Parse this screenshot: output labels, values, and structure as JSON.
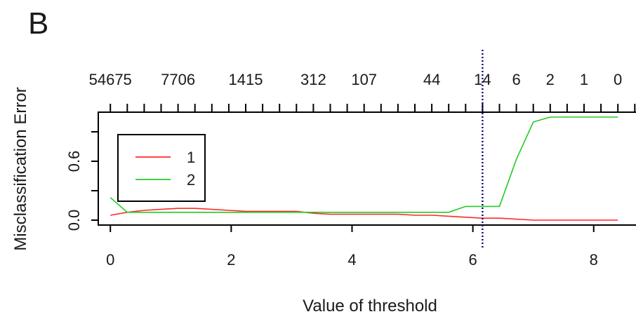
{
  "panel_label": "B",
  "chart_data": {
    "type": "line",
    "xlabel": "Value of threshold",
    "ylabel": "Misclassification Error",
    "xlim": [
      -0.2,
      8.7
    ],
    "ylim": [
      -0.05,
      1.1
    ],
    "x_ticks": [
      0,
      2,
      4,
      6,
      8
    ],
    "y_ticks": [
      0.0,
      0.3,
      0.6,
      0.9
    ],
    "y_tick_labels": [
      "0.0",
      "",
      "0.6",
      ""
    ],
    "top_axis": {
      "ticks": [
        0,
        0.28,
        0.56,
        0.84,
        1.12,
        1.4,
        1.68,
        1.96,
        2.24,
        2.52,
        2.8,
        3.08,
        3.36,
        3.64,
        3.92,
        4.2,
        4.48,
        4.76,
        5.04,
        5.32,
        5.6,
        5.88,
        6.16,
        6.44,
        6.72,
        7.0,
        7.28,
        7.56,
        7.84,
        8.12,
        8.4,
        8.68
      ],
      "labeled_positions": [
        0,
        1.12,
        2.24,
        3.36,
        4.2,
        5.32,
        6.16,
        6.72,
        7.28,
        7.84,
        8.4
      ],
      "labels": [
        "54675",
        "7706",
        "1415",
        "312",
        "107",
        "44",
        "14",
        "6",
        "2",
        "1",
        "0"
      ]
    },
    "vline": {
      "x": 6.16,
      "color": "#00007a"
    },
    "legend": {
      "placement": "top-left",
      "entries": [
        "1",
        "2"
      ]
    },
    "series": [
      {
        "name": "1",
        "color": "#ff2a2a",
        "x": [
          0,
          0.28,
          0.56,
          0.84,
          1.12,
          1.4,
          1.68,
          1.96,
          2.24,
          2.52,
          2.8,
          3.08,
          3.36,
          3.64,
          3.92,
          4.2,
          4.48,
          4.76,
          5.04,
          5.32,
          5.6,
          5.88,
          6.16,
          6.44,
          6.72,
          7.0,
          7.28,
          7.56,
          7.84,
          8.12,
          8.4
        ],
        "values": [
          0.05,
          0.08,
          0.1,
          0.11,
          0.12,
          0.12,
          0.11,
          0.1,
          0.09,
          0.09,
          0.09,
          0.09,
          0.07,
          0.06,
          0.06,
          0.06,
          0.06,
          0.06,
          0.05,
          0.05,
          0.04,
          0.03,
          0.02,
          0.02,
          0.01,
          0.0,
          0.0,
          0.0,
          0.0,
          0.0,
          0.0
        ]
      },
      {
        "name": "2",
        "color": "#22cc22",
        "x": [
          0,
          0.28,
          0.56,
          0.84,
          1.12,
          1.4,
          1.68,
          1.96,
          2.24,
          2.52,
          2.8,
          3.08,
          3.36,
          3.64,
          3.92,
          4.2,
          4.48,
          4.76,
          5.04,
          5.32,
          5.6,
          5.88,
          6.16,
          6.44,
          6.72,
          7.0,
          7.28,
          7.56,
          7.84,
          8.12,
          8.4
        ],
        "values": [
          0.23,
          0.08,
          0.08,
          0.08,
          0.08,
          0.08,
          0.08,
          0.08,
          0.08,
          0.08,
          0.08,
          0.08,
          0.08,
          0.08,
          0.08,
          0.08,
          0.08,
          0.08,
          0.08,
          0.08,
          0.08,
          0.14,
          0.14,
          0.14,
          0.62,
          1.0,
          1.05,
          1.05,
          1.05,
          1.05,
          1.05
        ]
      }
    ]
  }
}
